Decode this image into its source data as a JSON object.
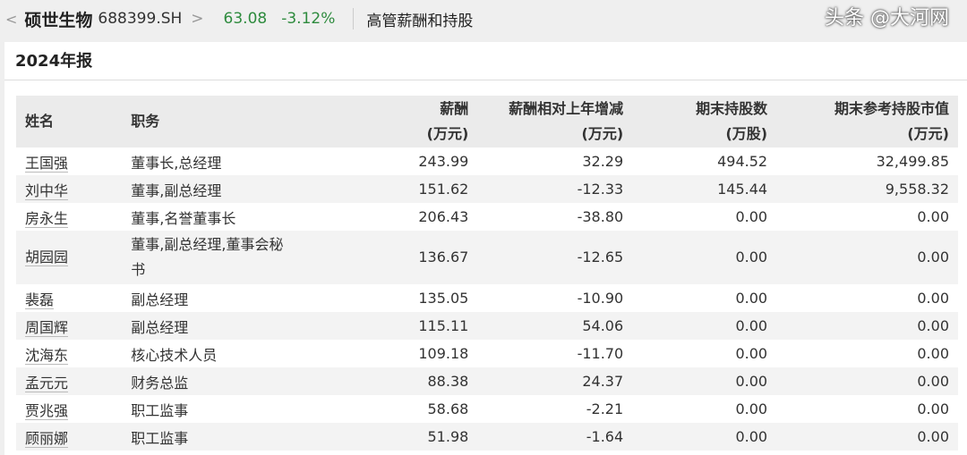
{
  "header": {
    "back_icon": "chevron-left",
    "stock_name": "硕世生物",
    "stock_code": "688399.SH",
    "forward_icon": "chevron-right",
    "price": "63.08",
    "change": "-3.12%",
    "page_title": "高管薪酬和持股",
    "price_color": "#2e8b3e"
  },
  "report": {
    "title": "2024年报"
  },
  "table": {
    "headers": [
      [
        "姓名",
        ""
      ],
      [
        "职务",
        ""
      ],
      [
        "薪酬",
        "(万元)"
      ],
      [
        "薪酬相对上年增减",
        "(万元)"
      ],
      [
        "期末持股数",
        "(万股)"
      ],
      [
        "期末参考持股市值",
        "(万元)"
      ]
    ],
    "rows": [
      [
        "王国强",
        "董事长,总经理",
        "243.99",
        "32.29",
        "494.52",
        "32,499.85"
      ],
      [
        "刘中华",
        "董事,副总经理",
        "151.62",
        "-12.33",
        "145.44",
        "9,558.32"
      ],
      [
        "房永生",
        "董事,名誉董事长",
        "206.43",
        "-38.80",
        "0.00",
        "0.00"
      ],
      [
        "胡园园",
        "董事,副总经理,董事会秘书",
        "136.67",
        "-12.65",
        "0.00",
        "0.00"
      ],
      [
        "裴磊",
        "副总经理",
        "135.05",
        "-10.90",
        "0.00",
        "0.00"
      ],
      [
        "周国辉",
        "副总经理",
        "115.11",
        "54.06",
        "0.00",
        "0.00"
      ],
      [
        "沈海东",
        "核心技术人员",
        "109.18",
        "-11.70",
        "0.00",
        "0.00"
      ],
      [
        "孟元元",
        "财务总监",
        "88.38",
        "24.37",
        "0.00",
        "0.00"
      ],
      [
        "贾兆强",
        "职工监事",
        "58.68",
        "-2.21",
        "0.00",
        "0.00"
      ],
      [
        "顾丽娜",
        "职工监事",
        "51.98",
        "-1.64",
        "0.00",
        "0.00"
      ]
    ]
  },
  "watermark": "头条 @大河网"
}
